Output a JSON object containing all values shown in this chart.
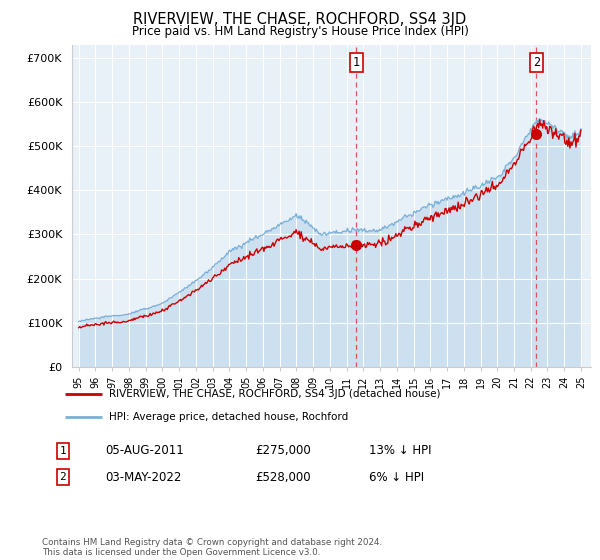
{
  "title": "RIVERVIEW, THE CHASE, ROCHFORD, SS4 3JD",
  "subtitle": "Price paid vs. HM Land Registry's House Price Index (HPI)",
  "ylabel_ticks": [
    "£0",
    "£100K",
    "£200K",
    "£300K",
    "£400K",
    "£500K",
    "£600K",
    "£700K"
  ],
  "ytick_values": [
    0,
    100000,
    200000,
    300000,
    400000,
    500000,
    600000,
    700000
  ],
  "ylim": [
    0,
    730000
  ],
  "hpi_color": "#7ab0d8",
  "hpi_fill_color": "#cce0f0",
  "price_color": "#cc0000",
  "plot_bg": "#e8f0f8",
  "grid_color": "#ffffff",
  "sale1_year_f": 2011.58,
  "sale1_price": 275000,
  "sale1_hpi_pct": "13% ↓ HPI",
  "sale1_date": "05-AUG-2011",
  "sale2_year_f": 2022.33,
  "sale2_price": 528000,
  "sale2_hpi_pct": "6% ↓ HPI",
  "sale2_date": "03-MAY-2022",
  "legend_line1": "RIVERVIEW, THE CHASE, ROCHFORD, SS4 3JD (detached house)",
  "legend_line2": "HPI: Average price, detached house, Rochford",
  "footnote": "Contains HM Land Registry data © Crown copyright and database right 2024.\nThis data is licensed under the Open Government Licence v3.0.",
  "start_year": 1995,
  "end_year": 2025
}
